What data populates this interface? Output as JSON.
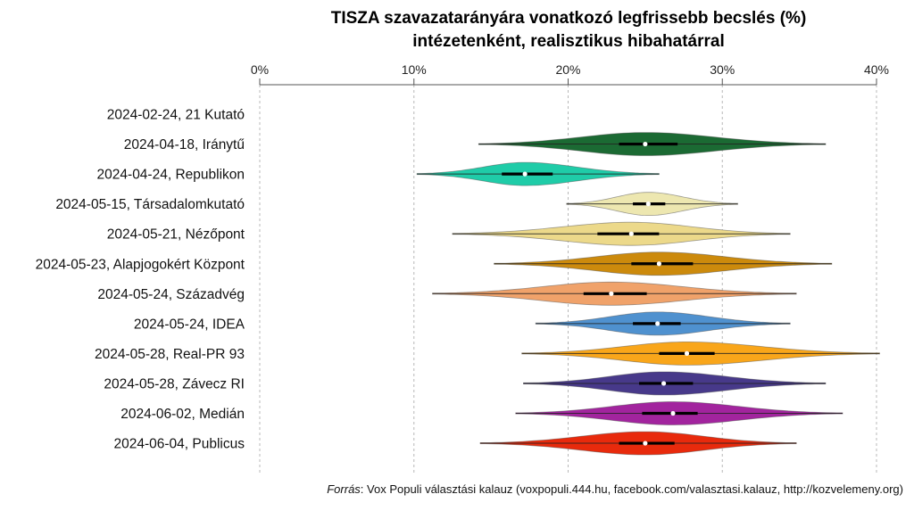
{
  "chart_data": {
    "type": "violin",
    "title": [
      "TISZA szavazatarányára vonatkozó legfrissebb becslés (%)",
      "intézetenként, realisztikus hibahatárral"
    ],
    "xlabel": "",
    "ylabel": "",
    "x_axis_position": "top",
    "xlim": [
      0,
      40
    ],
    "x_ticks": [
      0,
      10,
      20,
      30,
      40
    ],
    "x_tick_labels": [
      "0%",
      "10%",
      "20%",
      "30%",
      "40%"
    ],
    "grid": "vertical dashed",
    "series": [
      {
        "label": "2024-02-24, 21 Kutató",
        "color": null,
        "min": null,
        "q1": null,
        "median": null,
        "q3": null,
        "max": null
      },
      {
        "label": "2024-04-18, Iránytű",
        "color": "#1b6a33",
        "min": 14.2,
        "q1": 23.3,
        "median": 25.0,
        "q3": 27.1,
        "max": 36.7
      },
      {
        "label": "2024-04-24, Republikon",
        "color": "#1fcca8",
        "min": 10.2,
        "q1": 15.7,
        "median": 17.2,
        "q3": 19.0,
        "max": 25.9
      },
      {
        "label": "2024-05-15, Társadalomkutató",
        "color": "#ede7b0",
        "min": 19.9,
        "q1": 24.2,
        "median": 25.2,
        "q3": 26.3,
        "max": 31.0
      },
      {
        "label": "2024-05-21, Nézőpont",
        "color": "#ecd98a",
        "min": 12.5,
        "q1": 21.9,
        "median": 24.1,
        "q3": 25.9,
        "max": 34.4
      },
      {
        "label": "2024-05-23, Alapjogokért Központ",
        "color": "#cc8a0c",
        "min": 15.2,
        "q1": 24.1,
        "median": 25.9,
        "q3": 28.1,
        "max": 37.1
      },
      {
        "label": "2024-05-24, Századvég",
        "color": "#f0a26a",
        "min": 11.2,
        "q1": 21.0,
        "median": 22.8,
        "q3": 25.1,
        "max": 34.8
      },
      {
        "label": "2024-05-24, IDEA",
        "color": "#4f91cf",
        "min": 17.9,
        "q1": 24.2,
        "median": 25.8,
        "q3": 27.3,
        "max": 34.4
      },
      {
        "label": "2024-05-28, Real-PR 93",
        "color": "#f9a61a",
        "min": 17.0,
        "q1": 25.9,
        "median": 27.7,
        "q3": 29.5,
        "max": 40.2
      },
      {
        "label": "2024-05-28, Závecz RI",
        "color": "#47398a",
        "min": 17.1,
        "q1": 24.6,
        "median": 26.2,
        "q3": 28.1,
        "max": 36.7
      },
      {
        "label": "2024-06-02, Medián",
        "color": "#a2249e",
        "min": 16.6,
        "q1": 24.8,
        "median": 26.8,
        "q3": 28.4,
        "max": 37.8
      },
      {
        "label": "2024-06-04, Publicus",
        "color": "#e82a0c",
        "min": 14.3,
        "q1": 23.3,
        "median": 25.0,
        "q3": 26.9,
        "max": 34.8
      }
    ]
  },
  "source": {
    "prefix": "Forrás",
    "text": ": Vox Populi választási kalauz (voxpopuli.444.hu, facebook.com/valasztasi.kalauz, http://kozvelemeny.org)"
  }
}
